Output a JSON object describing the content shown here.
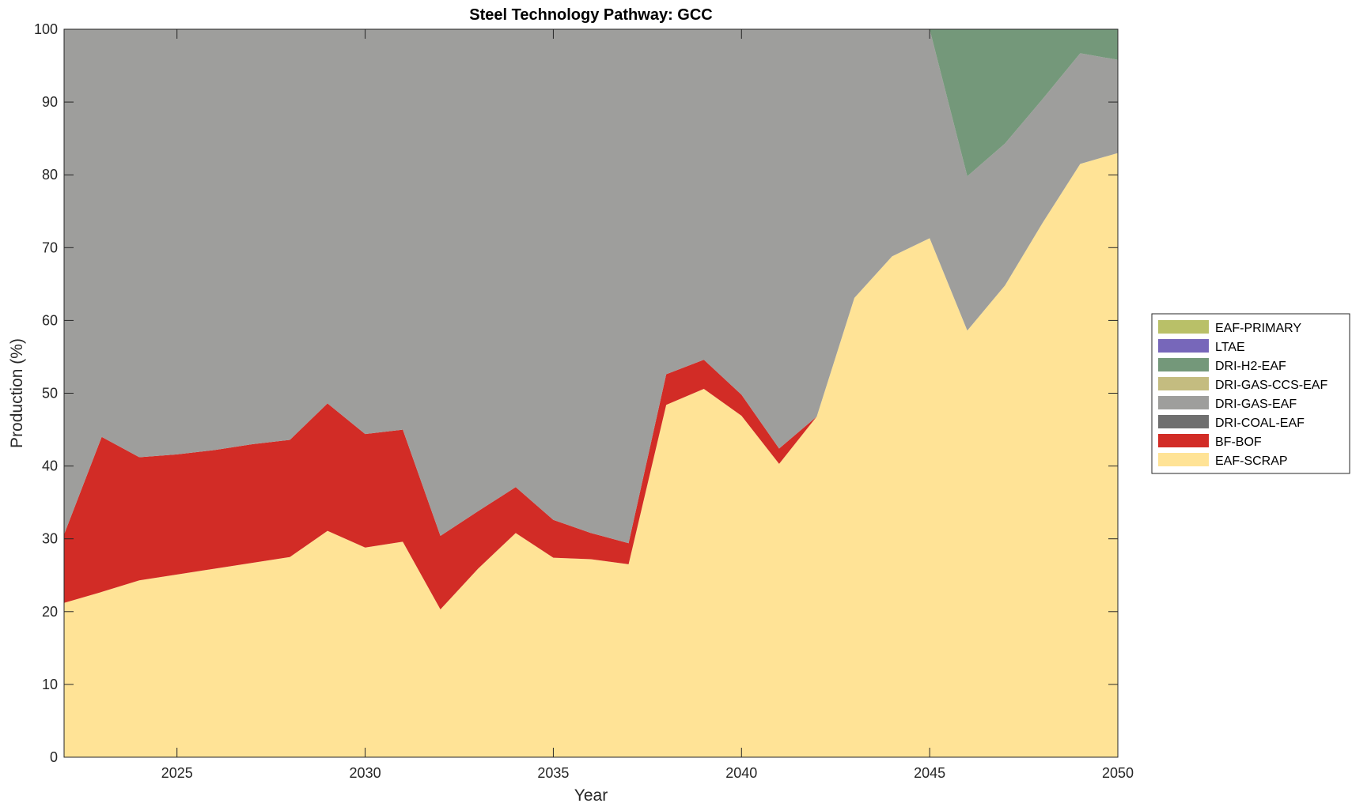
{
  "chart_data": {
    "type": "area",
    "stacked": true,
    "title": "Steel Technology Pathway: GCC",
    "xlabel": "Year",
    "ylabel": "Production (%)",
    "xlim": [
      2022,
      2050
    ],
    "ylim": [
      0,
      100
    ],
    "xticks": [
      2025,
      2030,
      2035,
      2040,
      2045,
      2050
    ],
    "yticks": [
      0,
      10,
      20,
      30,
      40,
      50,
      60,
      70,
      80,
      90,
      100
    ],
    "grid": false,
    "legend_position": "right",
    "x": [
      2022,
      2023,
      2024,
      2025,
      2026,
      2027,
      2028,
      2029,
      2030,
      2031,
      2032,
      2033,
      2034,
      2035,
      2036,
      2037,
      2038,
      2039,
      2040,
      2041,
      2042,
      2043,
      2044,
      2045,
      2046,
      2047,
      2048,
      2049,
      2050
    ],
    "series": [
      {
        "name": "EAF-SCRAP",
        "color": "#FFE396",
        "values": [
          21.2,
          22.7,
          24.3,
          25.1,
          25.9,
          26.7,
          27.5,
          31.1,
          28.8,
          29.6,
          20.3,
          25.9,
          30.8,
          27.4,
          27.2,
          26.5,
          48.4,
          50.6,
          46.9,
          40.3,
          46.8,
          63.1,
          68.8,
          71.3,
          58.6,
          64.8,
          73.4,
          81.5,
          83.0
        ]
      },
      {
        "name": "BF-BOF",
        "color": "#D22C26",
        "values": [
          9.4,
          21.3,
          16.9,
          16.5,
          16.3,
          16.3,
          16.1,
          17.5,
          15.6,
          15.4,
          10.1,
          7.9,
          6.3,
          5.2,
          3.6,
          2.9,
          4.2,
          4.0,
          2.9,
          2.1,
          0.0,
          0.0,
          0.0,
          0.0,
          0.0,
          0.0,
          0.0,
          0.0,
          0.0
        ]
      },
      {
        "name": "DRI-COAL-EAF",
        "color": "#6F6F6F",
        "values": [
          0,
          0,
          0,
          0,
          0,
          0,
          0,
          0,
          0,
          0,
          0,
          0,
          0,
          0,
          0,
          0,
          0,
          0,
          0,
          0,
          0,
          0,
          0,
          0,
          0,
          0,
          0,
          0,
          0
        ]
      },
      {
        "name": "DRI-GAS-EAF",
        "color": "#9E9E9C",
        "values": [
          69.4,
          56.0,
          58.8,
          58.4,
          57.8,
          57.0,
          56.4,
          51.4,
          55.6,
          55.0,
          69.6,
          66.2,
          62.9,
          67.4,
          69.2,
          70.6,
          47.4,
          45.4,
          50.2,
          57.6,
          53.2,
          36.9,
          31.2,
          28.7,
          21.2,
          19.5,
          17.0,
          15.2,
          12.8
        ]
      },
      {
        "name": "DRI-GAS-CCS-EAF",
        "color": "#C4BC80",
        "values": [
          0,
          0,
          0,
          0,
          0,
          0,
          0,
          0,
          0,
          0,
          0,
          0,
          0,
          0,
          0,
          0,
          0,
          0,
          0,
          0,
          0,
          0,
          0,
          0,
          0,
          0,
          0,
          0,
          0
        ]
      },
      {
        "name": "DRI-H2-EAF",
        "color": "#74987A",
        "values": [
          0,
          0,
          0,
          0,
          0,
          0,
          0,
          0,
          0,
          0,
          0,
          0,
          0,
          0,
          0,
          0,
          0,
          0,
          0,
          0,
          0,
          0,
          0,
          0,
          20.2,
          15.7,
          9.6,
          3.3,
          4.2
        ]
      },
      {
        "name": "LTAE",
        "color": "#7767BA",
        "values": [
          0,
          0,
          0,
          0,
          0,
          0,
          0,
          0,
          0,
          0,
          0,
          0,
          0,
          0,
          0,
          0,
          0,
          0,
          0,
          0,
          0,
          0,
          0,
          0,
          0,
          0,
          0,
          0,
          0
        ]
      },
      {
        "name": "EAF-PRIMARY",
        "color": "#B9C068",
        "values": [
          0,
          0,
          0,
          0,
          0,
          0,
          0,
          0,
          0,
          0,
          0,
          0,
          0,
          0,
          0,
          0,
          0,
          0,
          0,
          0,
          0,
          0,
          0,
          0,
          0,
          0,
          0,
          0,
          0
        ]
      }
    ],
    "legend_order": [
      "EAF-PRIMARY",
      "LTAE",
      "DRI-H2-EAF",
      "DRI-GAS-CCS-EAF",
      "DRI-GAS-EAF",
      "DRI-COAL-EAF",
      "BF-BOF",
      "EAF-SCRAP"
    ]
  }
}
